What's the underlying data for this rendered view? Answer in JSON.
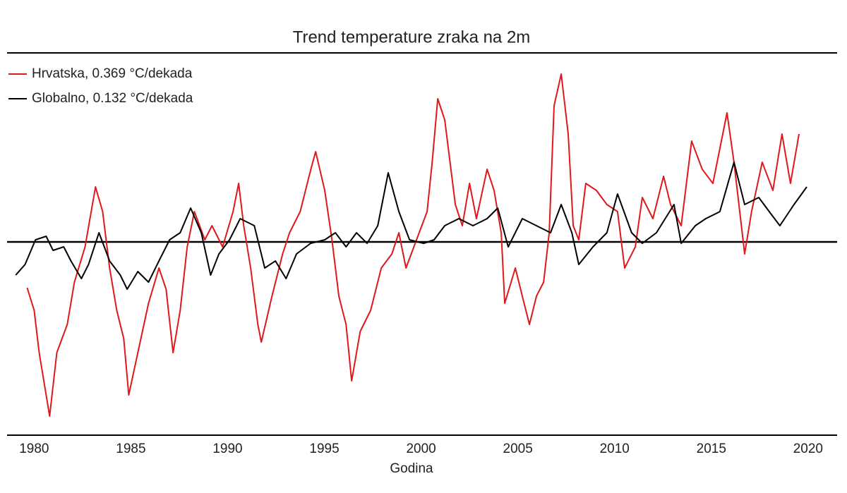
{
  "chart_data": {
    "type": "line",
    "title": "Trend temperature zraka na 2m",
    "x_label": "Godina",
    "xlim": [
      1978.6,
      2021.5
    ],
    "xticks": [
      1980,
      1985,
      1990,
      1995,
      2000,
      2005,
      2010,
      2015,
      2020
    ],
    "ylim": [
      -2.74,
      2.68
    ],
    "hline": 0,
    "grid": false,
    "legend": "upper left",
    "series": [
      {
        "name": "Hrvatska, 0.369 °C/dekada",
        "color": "#e0181b",
        "x": [
          1979.64,
          1980.0,
          1980.26,
          1980.8,
          1981.17,
          1981.71,
          1982.08,
          1982.63,
          1983.17,
          1983.54,
          1983.9,
          1984.27,
          1984.63,
          1984.89,
          1985.36,
          1985.91,
          1986.45,
          1986.82,
          1987.18,
          1987.55,
          1987.91,
          1988.28,
          1988.82,
          1989.19,
          1989.74,
          1990.28,
          1990.57,
          1990.83,
          1991.19,
          1991.56,
          1991.74,
          1992.29,
          1992.84,
          1993.2,
          1993.75,
          1994.3,
          1994.55,
          1995.02,
          1995.39,
          1995.75,
          1996.12,
          1996.41,
          1996.85,
          1997.39,
          1997.94,
          1998.49,
          1998.85,
          1999.22,
          1999.76,
          2000.31,
          2000.57,
          2000.86,
          2001.22,
          2001.77,
          2002.13,
          2002.5,
          2002.86,
          2003.41,
          2003.77,
          2004.14,
          2004.32,
          2004.87,
          2005.23,
          2005.6,
          2005.96,
          2006.33,
          2006.62,
          2006.87,
          2007.24,
          2007.6,
          2007.86,
          2008.15,
          2008.51,
          2009.06,
          2009.6,
          2010.15,
          2010.52,
          2011.07,
          2011.43,
          2011.98,
          2012.53,
          2012.89,
          2013.44,
          2013.98,
          2014.53,
          2015.08,
          2015.81,
          2016.17,
          2016.72,
          2017.08,
          2017.63,
          2018.18,
          2018.65,
          2019.09,
          2019.53
        ],
        "values": [
          -0.65,
          -0.97,
          -1.57,
          -2.47,
          -1.57,
          -1.17,
          -0.57,
          -0.07,
          0.78,
          0.43,
          -0.37,
          -0.97,
          -1.37,
          -2.17,
          -1.57,
          -0.87,
          -0.37,
          -0.67,
          -1.57,
          -0.97,
          -0.07,
          0.43,
          0.03,
          0.23,
          -0.07,
          0.43,
          0.83,
          0.23,
          -0.37,
          -1.17,
          -1.42,
          -0.77,
          -0.17,
          0.13,
          0.43,
          1.03,
          1.28,
          0.73,
          0.03,
          -0.77,
          -1.17,
          -1.97,
          -1.27,
          -0.97,
          -0.37,
          -0.17,
          0.13,
          -0.37,
          0.03,
          0.43,
          1.13,
          2.03,
          1.73,
          0.53,
          0.23,
          0.83,
          0.33,
          1.03,
          0.73,
          0.13,
          -0.87,
          -0.37,
          -0.77,
          -1.17,
          -0.77,
          -0.57,
          0.13,
          1.93,
          2.38,
          1.53,
          0.23,
          0.03,
          0.83,
          0.73,
          0.53,
          0.43,
          -0.37,
          -0.07,
          0.63,
          0.33,
          0.93,
          0.53,
          0.23,
          1.43,
          1.03,
          0.83,
          1.83,
          1.13,
          -0.17,
          0.43,
          1.13,
          0.73,
          1.53,
          0.83,
          1.53
        ]
      },
      {
        "name": "Globalno, 0.132 °C/dekada",
        "color": "#000000",
        "x": [
          1979.05,
          1979.53,
          1980.07,
          1980.62,
          1980.98,
          1981.53,
          1981.9,
          1982.44,
          1982.81,
          1983.35,
          1983.9,
          1984.45,
          1984.81,
          1985.36,
          1985.91,
          1986.45,
          1987.0,
          1987.55,
          1988.09,
          1988.64,
          1989.12,
          1989.55,
          1990.1,
          1990.65,
          1991.38,
          1991.92,
          1992.47,
          1993.02,
          1993.56,
          1994.29,
          1995.02,
          1995.57,
          1996.12,
          1996.66,
          1997.21,
          1997.76,
          1998.3,
          1998.85,
          1999.4,
          2000.13,
          2000.67,
          2001.22,
          2001.95,
          2002.68,
          2003.41,
          2003.96,
          2004.5,
          2005.23,
          2005.96,
          2006.69,
          2007.24,
          2007.79,
          2008.15,
          2008.88,
          2009.6,
          2010.15,
          2010.88,
          2011.43,
          2012.16,
          2013.07,
          2013.44,
          2014.17,
          2014.71,
          2015.44,
          2016.17,
          2016.72,
          2017.45,
          2017.99,
          2018.54,
          2019.27,
          2019.93
        ],
        "values": [
          -0.47,
          -0.32,
          0.03,
          0.08,
          -0.12,
          -0.07,
          -0.27,
          -0.52,
          -0.32,
          0.13,
          -0.27,
          -0.47,
          -0.67,
          -0.42,
          -0.57,
          -0.27,
          0.03,
          0.13,
          0.48,
          0.13,
          -0.47,
          -0.17,
          0.03,
          0.33,
          0.23,
          -0.37,
          -0.27,
          -0.52,
          -0.17,
          -0.02,
          0.03,
          0.13,
          -0.07,
          0.13,
          -0.02,
          0.23,
          0.98,
          0.43,
          0.03,
          -0.02,
          0.03,
          0.23,
          0.33,
          0.23,
          0.33,
          0.48,
          -0.07,
          0.33,
          0.23,
          0.13,
          0.53,
          0.13,
          -0.32,
          -0.07,
          0.13,
          0.68,
          0.13,
          -0.02,
          0.13,
          0.53,
          -0.02,
          0.23,
          0.33,
          0.43,
          1.13,
          0.53,
          0.63,
          0.43,
          0.23,
          0.53,
          0.78
        ]
      }
    ]
  }
}
